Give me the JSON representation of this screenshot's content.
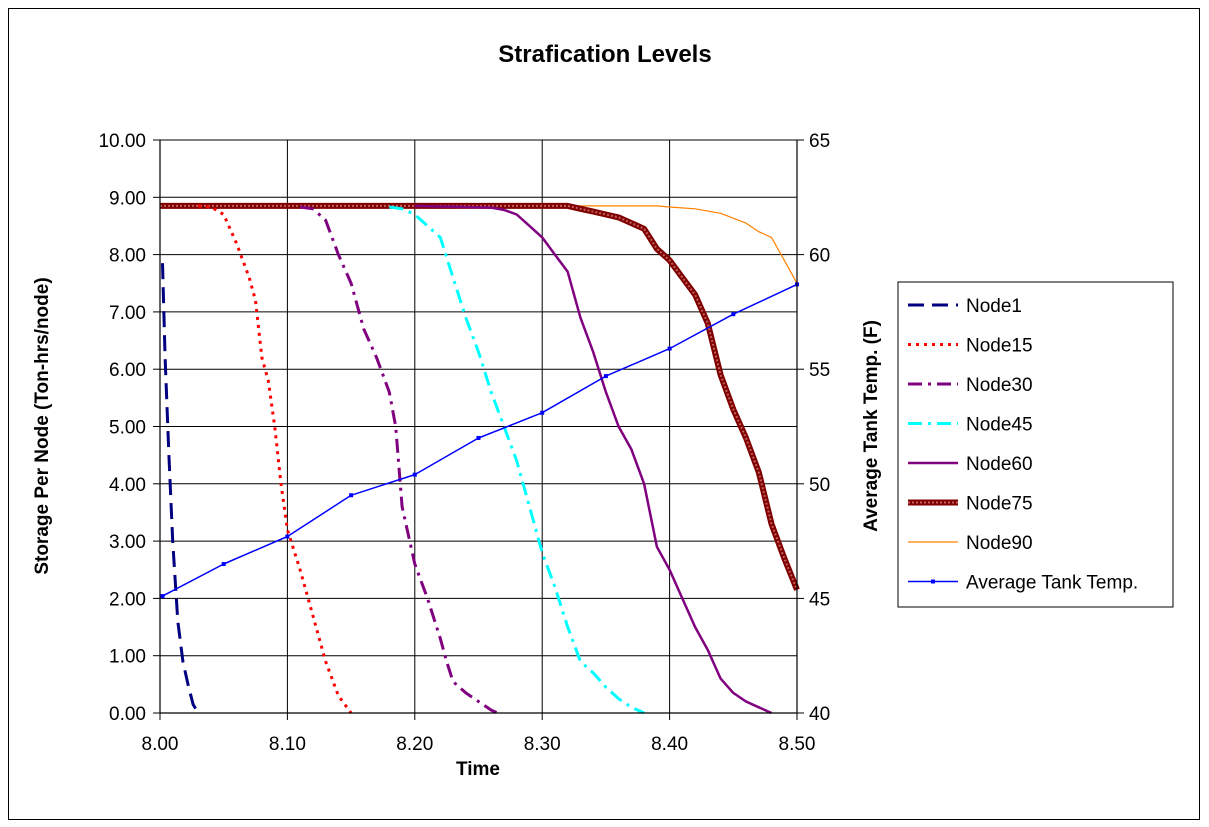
{
  "chart_data": {
    "type": "line",
    "title": "Strafication Levels",
    "xlabel": "Time",
    "ylabel": "Storage Per Node (Ton-hrs/node)",
    "y2label": "Average Tank Temp. (F)",
    "xlim": [
      8.0,
      8.5
    ],
    "ylim": [
      0,
      10
    ],
    "y2lim": [
      40,
      65
    ],
    "x_ticks": [
      "8.00",
      "8.10",
      "8.20",
      "8.30",
      "8.40",
      "8.50"
    ],
    "y_ticks": [
      "0.00",
      "1.00",
      "2.00",
      "3.00",
      "4.00",
      "5.00",
      "6.00",
      "7.00",
      "8.00",
      "9.00",
      "10.00"
    ],
    "y2_ticks": [
      "40",
      "45",
      "50",
      "55",
      "60",
      "65"
    ],
    "grid": true,
    "legend_position": "right",
    "series": [
      {
        "name": "Node1",
        "axis": "left",
        "color": "#000080",
        "style": "dash",
        "x": [
          8.002,
          8.004,
          8.007,
          8.01,
          8.014,
          8.018,
          8.022,
          8.026,
          8.03
        ],
        "y": [
          7.85,
          6.2,
          4.5,
          3.0,
          1.6,
          0.9,
          0.5,
          0.15,
          0.0
        ]
      },
      {
        "name": "Node15",
        "axis": "left",
        "color": "#ff0000",
        "style": "dot",
        "x": [
          8.03,
          8.04,
          8.05,
          8.06,
          8.07,
          8.075,
          8.08,
          8.085,
          8.09,
          8.095,
          8.1,
          8.11,
          8.12,
          8.13,
          8.14,
          8.15
        ],
        "y": [
          8.85,
          8.83,
          8.7,
          8.2,
          7.6,
          7.2,
          6.2,
          5.8,
          5.0,
          4.0,
          3.2,
          2.5,
          1.7,
          0.9,
          0.3,
          0.0
        ]
      },
      {
        "name": "Node30",
        "axis": "left",
        "color": "#800080",
        "style": "dashdot",
        "x": [
          8.11,
          8.12,
          8.13,
          8.14,
          8.15,
          8.16,
          8.17,
          8.18,
          8.185,
          8.19,
          8.2,
          8.21,
          8.22,
          8.225,
          8.23,
          8.24,
          8.25,
          8.26,
          8.265
        ],
        "y": [
          8.83,
          8.8,
          8.6,
          8.0,
          7.5,
          6.7,
          6.2,
          5.6,
          5.0,
          3.6,
          2.6,
          2.0,
          1.3,
          0.9,
          0.55,
          0.35,
          0.2,
          0.05,
          0.0
        ]
      },
      {
        "name": "Node45",
        "axis": "left",
        "color": "#00ffff",
        "style": "dashdot",
        "x": [
          8.18,
          8.19,
          8.2,
          8.21,
          8.22,
          8.23,
          8.24,
          8.25,
          8.26,
          8.27,
          8.28,
          8.29,
          8.3,
          8.31,
          8.32,
          8.33,
          8.34,
          8.35,
          8.36,
          8.37,
          8.38
        ],
        "y": [
          8.83,
          8.8,
          8.7,
          8.5,
          8.3,
          7.6,
          6.9,
          6.3,
          5.6,
          5.0,
          4.4,
          3.6,
          2.8,
          2.2,
          1.5,
          0.9,
          0.7,
          0.45,
          0.25,
          0.1,
          0.0
        ]
      },
      {
        "name": "Node60",
        "axis": "left",
        "color": "#800080",
        "style": "solid",
        "x": [
          8.2,
          8.26,
          8.27,
          8.28,
          8.29,
          8.3,
          8.31,
          8.32,
          8.33,
          8.34,
          8.35,
          8.36,
          8.37,
          8.38,
          8.39,
          8.4,
          8.41,
          8.42,
          8.43,
          8.44,
          8.45,
          8.46,
          8.47,
          8.48
        ],
        "y": [
          8.85,
          8.82,
          8.78,
          8.7,
          8.5,
          8.3,
          8.0,
          7.7,
          6.9,
          6.3,
          5.6,
          5.0,
          4.6,
          4.0,
          2.9,
          2.5,
          2.0,
          1.5,
          1.1,
          0.6,
          0.35,
          0.2,
          0.1,
          0.0
        ]
      },
      {
        "name": "Node75",
        "axis": "left",
        "color": "#800000",
        "style": "thick",
        "x": [
          8.0,
          8.32,
          8.33,
          8.34,
          8.35,
          8.36,
          8.37,
          8.38,
          8.39,
          8.4,
          8.41,
          8.42,
          8.43,
          8.44,
          8.45,
          8.46,
          8.47,
          8.48,
          8.49,
          8.5
        ],
        "y": [
          8.85,
          8.85,
          8.8,
          8.75,
          8.7,
          8.65,
          8.55,
          8.45,
          8.1,
          7.9,
          7.6,
          7.3,
          6.8,
          5.9,
          5.3,
          4.8,
          4.2,
          3.3,
          2.7,
          2.15
        ]
      },
      {
        "name": "Node90",
        "axis": "left",
        "color": "#ff8000",
        "style": "thin",
        "x": [
          8.0,
          8.33,
          8.36,
          8.39,
          8.4,
          8.42,
          8.44,
          8.46,
          8.47,
          8.48,
          8.49,
          8.5
        ],
        "y": [
          8.85,
          8.85,
          8.85,
          8.85,
          8.83,
          8.8,
          8.72,
          8.55,
          8.4,
          8.3,
          7.9,
          7.5
        ]
      },
      {
        "name": "Average Tank Temp.",
        "axis": "right",
        "color": "#0000ff",
        "style": "marker",
        "x": [
          8.002,
          8.05,
          8.1,
          8.15,
          8.2,
          8.25,
          8.3,
          8.35,
          8.4,
          8.45,
          8.5
        ],
        "y": [
          45.1,
          46.5,
          47.7,
          49.5,
          50.4,
          52.0,
          53.1,
          54.7,
          55.9,
          57.4,
          58.7
        ]
      }
    ]
  }
}
